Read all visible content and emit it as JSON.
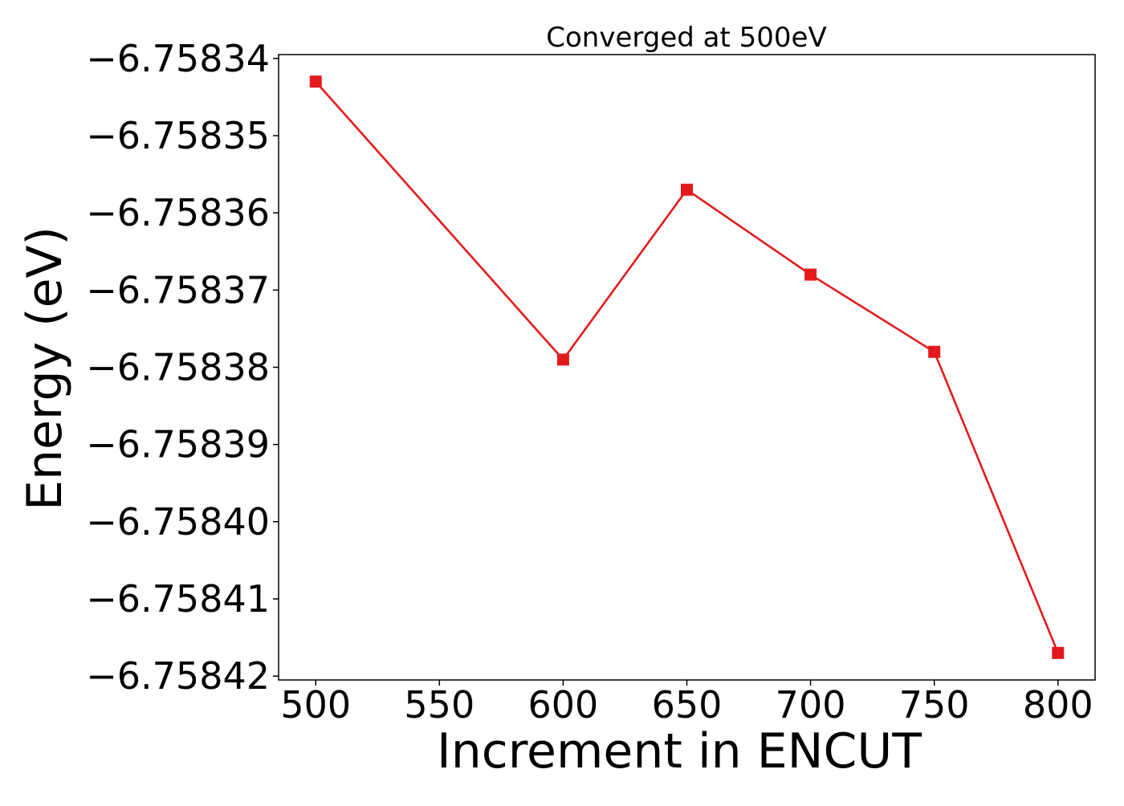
{
  "chart_data": {
    "type": "line",
    "title": "Converged at 500eV",
    "xlabel": "Increment in ENCUT",
    "ylabel": "Energy (eV)",
    "x": [
      500,
      600,
      650,
      700,
      750,
      800
    ],
    "series": [
      {
        "values": [
          -6.758343,
          -6.758379,
          -6.758357,
          -6.758368,
          -6.758378,
          -6.758417
        ],
        "color": "#e31a1c",
        "marker": "square"
      }
    ],
    "xlim": [
      485,
      815
    ],
    "ylim": [
      -6.7584205,
      -6.7583395
    ],
    "xticks": [
      500,
      550,
      600,
      650,
      700,
      750,
      800
    ],
    "xtick_labels": [
      "500",
      "550",
      "600",
      "650",
      "700",
      "750",
      "800"
    ],
    "yticks": [
      -6.75834,
      -6.75835,
      -6.75836,
      -6.75837,
      -6.75838,
      -6.75839,
      -6.7584,
      -6.75841,
      -6.75842
    ],
    "ytick_labels": [
      "−6.75834",
      "−6.75835",
      "−6.75836",
      "−6.75837",
      "−6.75838",
      "−6.75839",
      "−6.75840",
      "−6.75841",
      "−6.75842"
    ],
    "grid": false,
    "legend": "none"
  }
}
